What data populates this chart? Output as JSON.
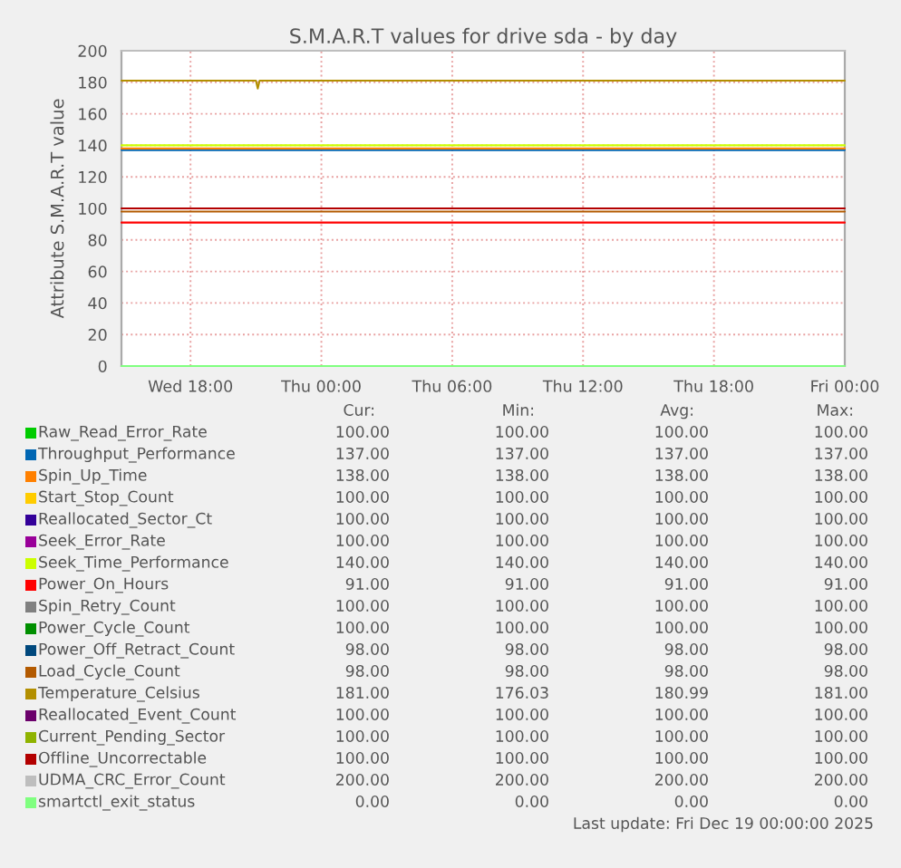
{
  "chart_data": {
    "type": "line",
    "title": "S.M.A.R.T values for drive sda - by day",
    "ylabel": "Attribute S.M.A.R.T value",
    "x": [
      "2025-12-17T14:50",
      "2025-12-19T00:00"
    ],
    "xlim": [
      "2025-12-17T14:50",
      "2025-12-19T00:00"
    ],
    "xticks": [
      {
        "value": "2025-12-17T18:00",
        "label": "Wed 18:00"
      },
      {
        "value": "2025-12-18T00:00",
        "label": "Thu 00:00"
      },
      {
        "value": "2025-12-18T06:00",
        "label": "Thu 06:00"
      },
      {
        "value": "2025-12-18T12:00",
        "label": "Thu 12:00"
      },
      {
        "value": "2025-12-18T18:00",
        "label": "Thu 18:00"
      },
      {
        "value": "2025-12-19T00:00",
        "label": "Fri 00:00"
      }
    ],
    "ylim": [
      0,
      200
    ],
    "yticks": [
      0,
      20,
      40,
      60,
      80,
      100,
      120,
      140,
      160,
      180,
      200
    ],
    "grid": true,
    "legend": "bottom",
    "marker": "none",
    "line_style": "solid",
    "series": [
      {
        "name": "Raw_Read_Error_Rate",
        "color": "#00cc00",
        "values": [
          null,
          null
        ]
      },
      {
        "name": "Throughput_Performance",
        "color": "#0066b3",
        "values": [
          137,
          137
        ]
      },
      {
        "name": "Spin_Up_Time",
        "color": "#ff8000",
        "values": [
          138,
          138
        ]
      },
      {
        "name": "Start_Stop_Count",
        "color": "#ffcc00",
        "values": [
          null,
          null
        ]
      },
      {
        "name": "Reallocated_Sector_Ct",
        "color": "#330099",
        "values": [
          null,
          null
        ]
      },
      {
        "name": "Seek_Error_Rate",
        "color": "#990099",
        "values": [
          null,
          null
        ]
      },
      {
        "name": "Seek_Time_Performance",
        "color": "#ccff00",
        "values": [
          140,
          140
        ]
      },
      {
        "name": "Power_On_Hours",
        "color": "#ff0000",
        "values": [
          91,
          91
        ]
      },
      {
        "name": "Spin_Retry_Count",
        "color": "#808080",
        "values": [
          null,
          null
        ]
      },
      {
        "name": "Power_Cycle_Count",
        "color": "#008f00",
        "values": [
          null,
          null
        ]
      },
      {
        "name": "Power_Off_Retract_Count",
        "color": "#00487d",
        "values": [
          null,
          null
        ]
      },
      {
        "name": "Load_Cycle_Count",
        "color": "#b35a00",
        "values": [
          98,
          98
        ]
      },
      {
        "name": "Temperature_Celsius",
        "color": "#b38f00",
        "x": [
          "2025-12-17T14:50",
          "2025-12-17T21:00",
          "2025-12-17T21:05",
          "2025-12-17T21:10",
          "2025-12-19T00:00"
        ],
        "values": [
          181,
          181,
          176,
          181,
          181
        ]
      },
      {
        "name": "Reallocated_Event_Count",
        "color": "#6b006b",
        "values": [
          null,
          null
        ]
      },
      {
        "name": "Current_Pending_Sector",
        "color": "#8fb300",
        "values": [
          null,
          null
        ]
      },
      {
        "name": "Offline_Uncorrectable",
        "color": "#b30000",
        "values": [
          100,
          100
        ]
      },
      {
        "name": "UDMA_CRC_Error_Count",
        "color": "#bebebe",
        "values": [
          200,
          200
        ]
      },
      {
        "name": "smartctl_exit_status",
        "color": "#80ff80",
        "values": [
          0,
          0
        ]
      }
    ],
    "annotations": [
      "Cur:",
      "Min:",
      "Avg:",
      "Max:",
      "100.00",
      "100.00",
      "100.00",
      "100.00",
      "137.00",
      "137.00",
      "137.00",
      "137.00",
      "138.00",
      "138.00",
      "138.00",
      "138.00",
      "100.00",
      "100.00",
      "100.00",
      "100.00",
      "100.00",
      "100.00",
      "100.00",
      "100.00",
      "100.00",
      "100.00",
      "100.00",
      "100.00",
      "140.00",
      "140.00",
      "140.00",
      "140.00",
      "91.00",
      "91.00",
      "91.00",
      "91.00",
      "100.00",
      "100.00",
      "100.00",
      "100.00",
      "100.00",
      "100.00",
      "100.00",
      "100.00",
      "98.00",
      "98.00",
      "98.00",
      "98.00",
      "98.00",
      "98.00",
      "98.00",
      "98.00",
      "181.00",
      "176.03",
      "180.99",
      "181.00",
      "100.00",
      "100.00",
      "100.00",
      "100.00",
      "100.00",
      "100.00",
      "100.00",
      "100.00",
      "100.00",
      "100.00",
      "100.00",
      "100.00",
      "200.00",
      "200.00",
      "200.00",
      "200.00",
      "0.00",
      "0.00",
      "0.00",
      "0.00",
      "Last update: Fri Dec 19 00:00:00 2025"
    ]
  }
}
